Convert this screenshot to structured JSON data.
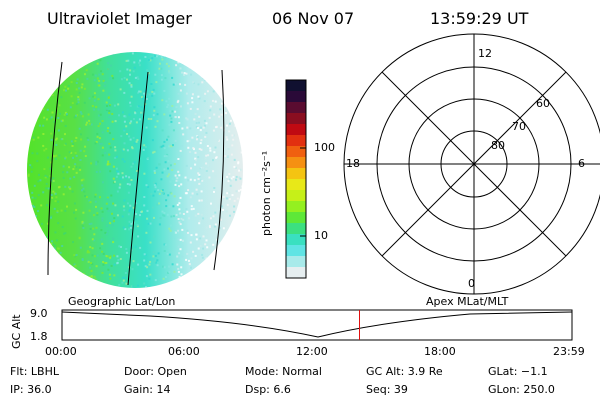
{
  "header": {
    "instrument": "Ultraviolet Imager",
    "date": "06 Nov 07",
    "time": "13:59:29 UT"
  },
  "colorbar": {
    "unit_label": "photon cm⁻²s⁻¹",
    "ticks": [
      "100",
      "10"
    ],
    "colors": [
      "#101030",
      "#2a0a38",
      "#5a0c30",
      "#8a0e20",
      "#c00a12",
      "#e23010",
      "#f06010",
      "#f59012",
      "#f4c412",
      "#e8e818",
      "#c6f018",
      "#94f020",
      "#5ee838",
      "#3ce080",
      "#3ae0c0",
      "#60e4e4",
      "#a8eaea",
      "#e6eef0"
    ]
  },
  "polar_grid": {
    "mlt_labels": {
      "top": "12",
      "left": "18",
      "right": "6",
      "bottom": "0"
    },
    "lat_labels": [
      "60",
      "70",
      "80"
    ]
  },
  "timeline": {
    "left_title": "Geographic Lat/Lon",
    "right_title": "Apex MLat/MLT",
    "y_axis_label": "GC Alt",
    "y_ticks": [
      "9.0",
      "1.8"
    ],
    "x_ticks": [
      "00:00",
      "06:00",
      "12:00",
      "18:00",
      "23:59"
    ],
    "current_time_hours": 14.0
  },
  "status": {
    "row1": {
      "flt": "Flt: LBHL",
      "door": "Door: Open",
      "mode": "Mode: Normal",
      "gcalt": "GC Alt: 3.9 Re",
      "glat": "GLat:  −1.1"
    },
    "row2": {
      "ip": "IP: 36.0",
      "gain": "Gain: 14",
      "dsp": "Dsp:     6.6",
      "seq": "Seq: 39",
      "glon": "GLon: 250.0"
    }
  }
}
